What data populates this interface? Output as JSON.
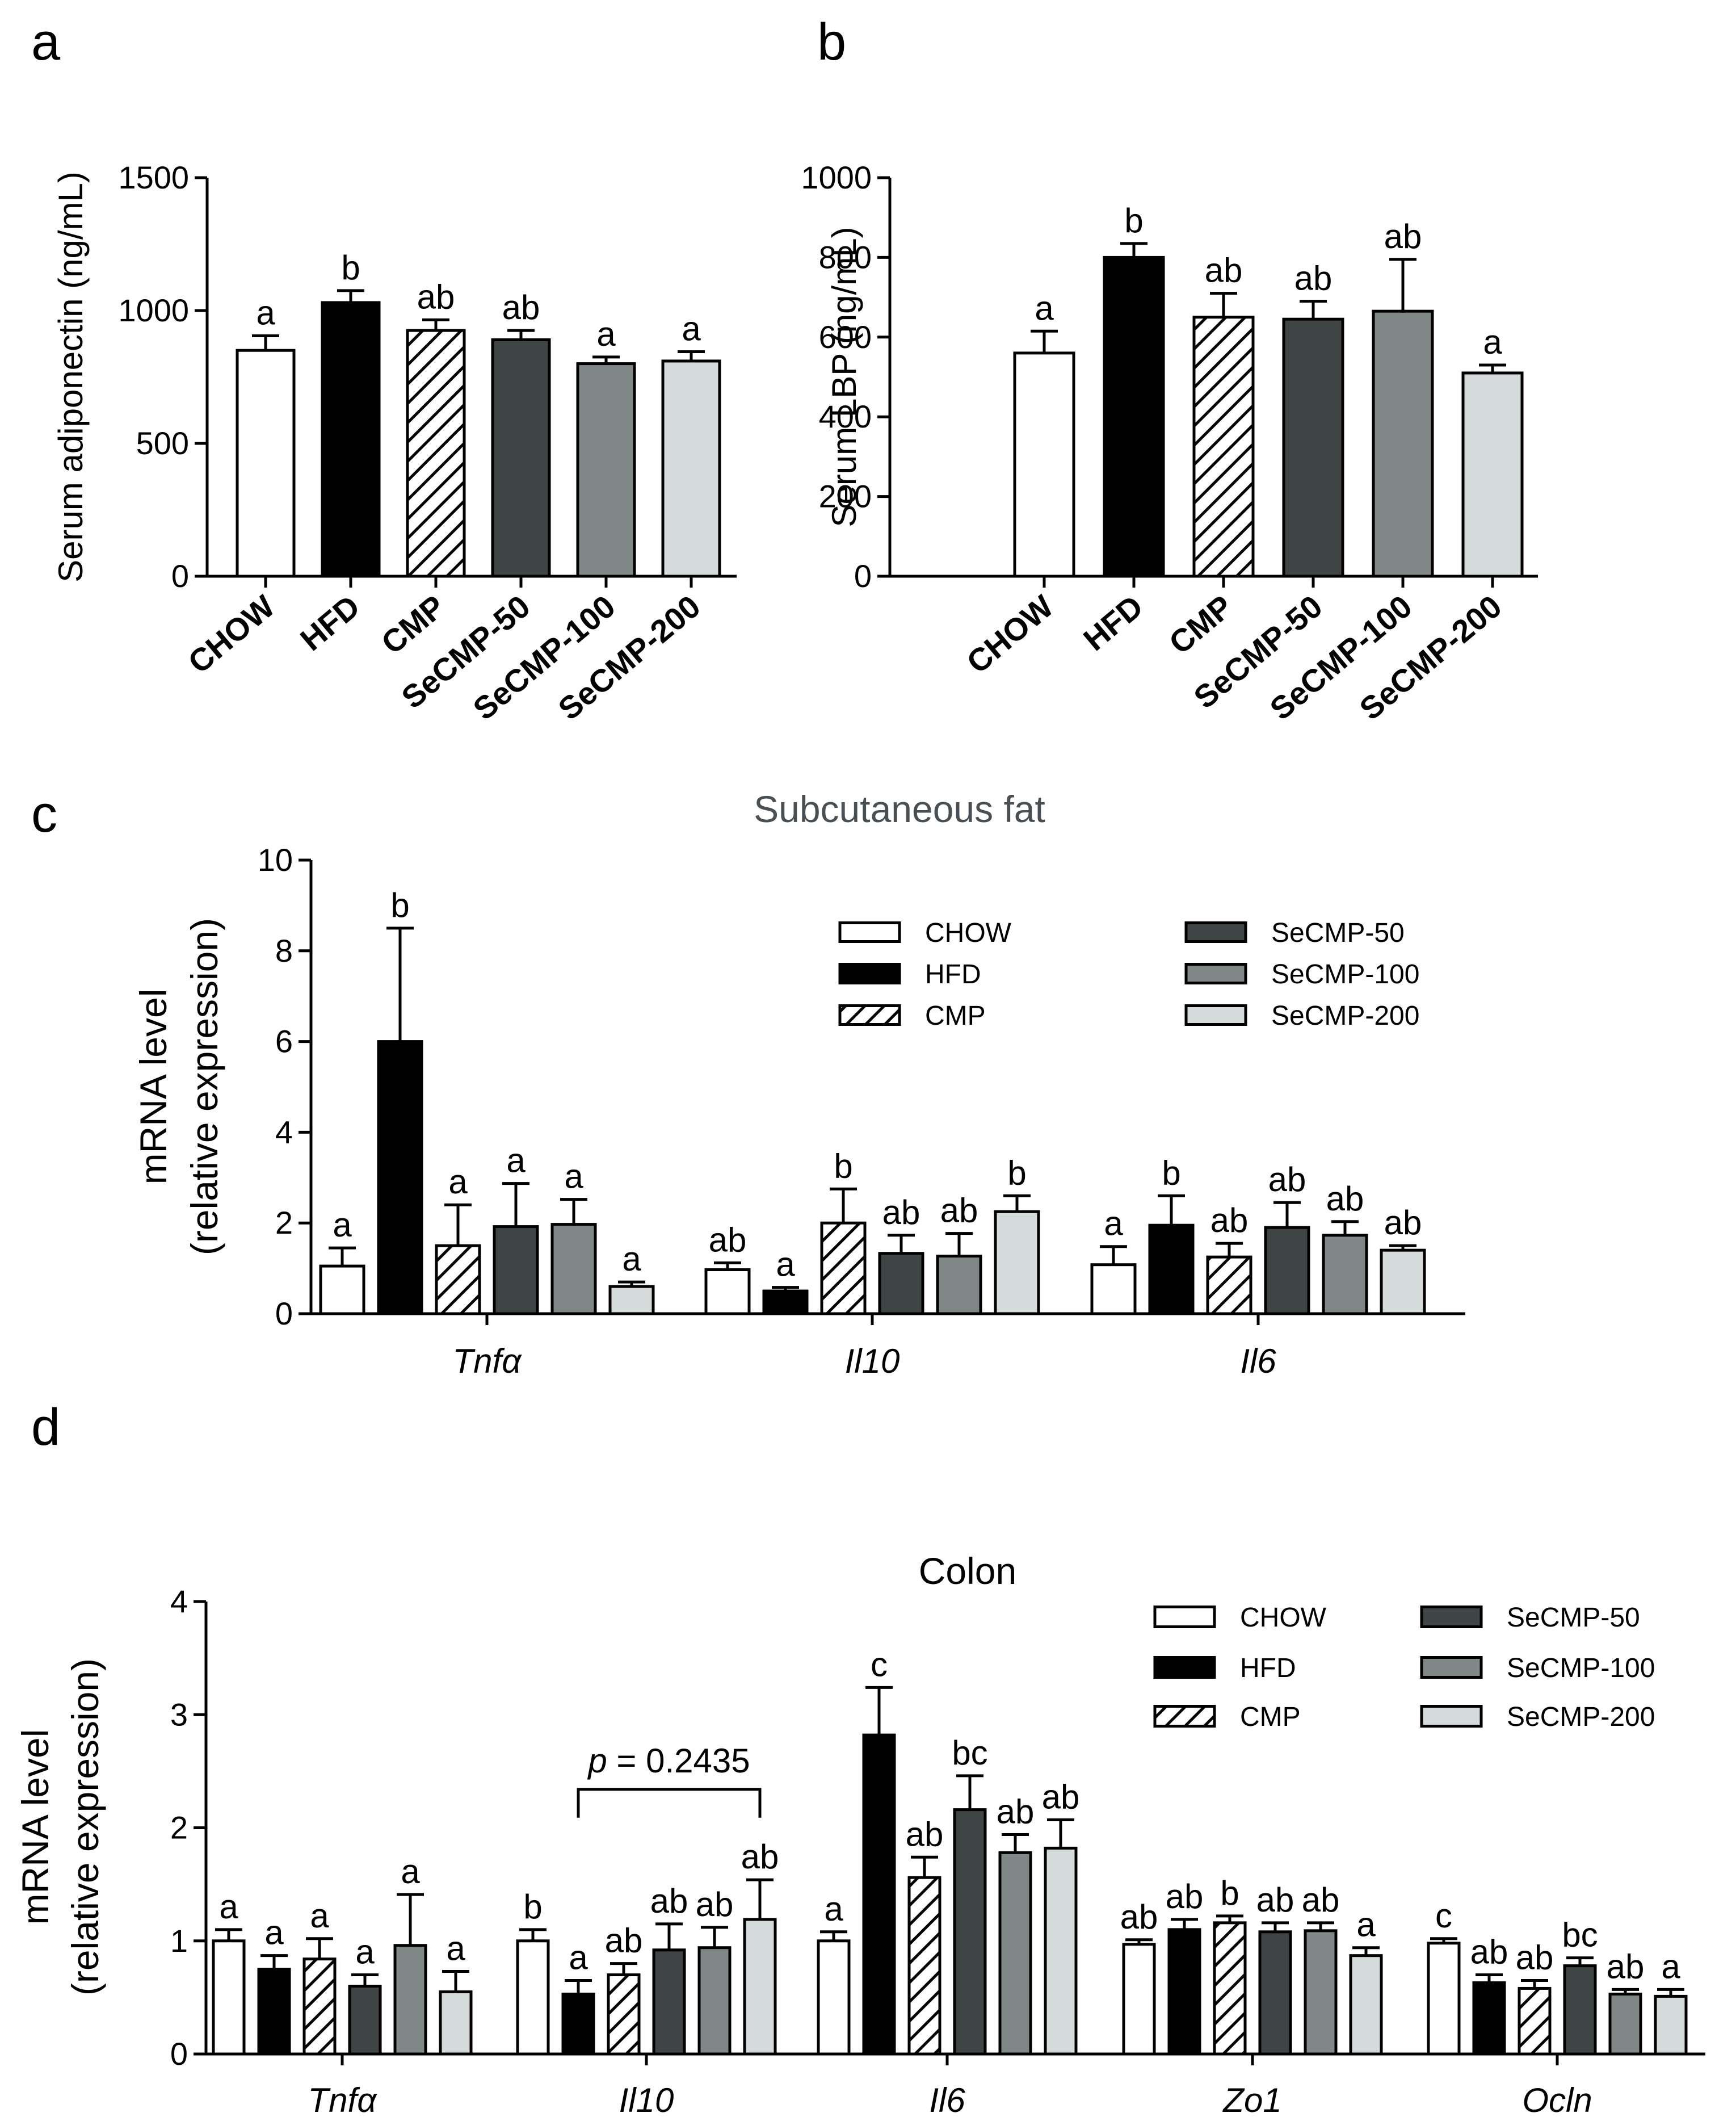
{
  "figure": {
    "groups": [
      "CHOW",
      "HFD",
      "CMP",
      "SeCMP-50",
      "SeCMP-100",
      "SeCMP-200"
    ],
    "group_colors": {
      "CHOW": "#ffffff",
      "HFD": "#000000",
      "CMP": "hatched",
      "SeCMP-50": "#3f4444",
      "SeCMP-100": "#7f8787",
      "SeCMP-200": "#d5dada"
    }
  },
  "chart_data": [
    {
      "id": "a",
      "panel_label": "a",
      "type": "bar",
      "title": "",
      "ylabel": "Serum adiponectin (ng/mL)",
      "ylim": [
        0,
        1500
      ],
      "yticks": [
        0,
        500,
        1000,
        1500
      ],
      "categories": [
        "CHOW",
        "HFD",
        "CMP",
        "SeCMP-50",
        "SeCMP-100",
        "SeCMP-200"
      ],
      "values": [
        850,
        1030,
        925,
        890,
        800,
        810
      ],
      "errors": [
        55,
        45,
        40,
        35,
        25,
        35
      ],
      "letters": [
        "a",
        "b",
        "ab",
        "ab",
        "a",
        "a"
      ]
    },
    {
      "id": "b",
      "panel_label": "b",
      "type": "bar",
      "title": "",
      "ylabel": "Serum LBP (ng/mL)",
      "ylim": [
        0,
        1000
      ],
      "yticks": [
        0,
        200,
        400,
        600,
        800,
        1000
      ],
      "categories": [
        "CHOW",
        "HFD",
        "CMP",
        "SeCMP-50",
        "SeCMP-100",
        "SeCMP-200"
      ],
      "values": [
        560,
        800,
        650,
        645,
        665,
        510
      ],
      "errors": [
        55,
        35,
        60,
        45,
        130,
        20
      ],
      "letters": [
        "a",
        "b",
        "ab",
        "ab",
        "ab",
        "a"
      ]
    },
    {
      "id": "c",
      "panel_label": "c",
      "type": "bar",
      "title": "Subcutaneous fat",
      "ylabel": [
        "mRNA level",
        "(relative expression)"
      ],
      "ylim": [
        0,
        10
      ],
      "yticks": [
        0,
        2,
        4,
        6,
        8,
        10
      ],
      "genes": [
        "Tnfα",
        "Il10",
        "Il6"
      ],
      "series": [
        {
          "name": "CHOW",
          "values": [
            1.05,
            0.97,
            1.08
          ],
          "errors": [
            0.4,
            0.15,
            0.4
          ],
          "letters": [
            "a",
            "ab",
            "a"
          ]
        },
        {
          "name": "HFD",
          "values": [
            6.0,
            0.5,
            1.95
          ],
          "errors": [
            2.5,
            0.08,
            0.65
          ],
          "letters": [
            "b",
            "a",
            "b"
          ]
        },
        {
          "name": "CMP",
          "values": [
            1.5,
            2.0,
            1.25
          ],
          "errors": [
            0.9,
            0.75,
            0.3
          ],
          "letters": [
            "a",
            "b",
            "ab"
          ]
        },
        {
          "name": "SeCMP-50",
          "values": [
            1.92,
            1.33,
            1.9
          ],
          "errors": [
            0.95,
            0.4,
            0.55
          ],
          "letters": [
            "a",
            "ab",
            "ab"
          ]
        },
        {
          "name": "SeCMP-100",
          "values": [
            1.97,
            1.27,
            1.73
          ],
          "errors": [
            0.55,
            0.5,
            0.3
          ],
          "letters": [
            "a",
            "ab",
            "ab"
          ]
        },
        {
          "name": "SeCMP-200",
          "values": [
            0.6,
            2.25,
            1.4
          ],
          "errors": [
            0.1,
            0.35,
            0.1
          ],
          "letters": [
            "a",
            "b",
            "ab"
          ]
        }
      ],
      "legend_position": "top-right"
    },
    {
      "id": "d",
      "panel_label": "d",
      "type": "bar",
      "title": "Colon",
      "ylabel": [
        "mRNA level",
        "(relative expression)"
      ],
      "ylim": [
        0,
        4
      ],
      "yticks": [
        0,
        1,
        2,
        3,
        4
      ],
      "genes": [
        "Tnfα",
        "Il10",
        "Il6",
        "Zo1",
        "Ocln"
      ],
      "series": [
        {
          "name": "CHOW",
          "values": [
            1.0,
            1.0,
            1.0,
            0.97,
            0.98
          ],
          "errors": [
            0.1,
            0.1,
            0.08,
            0.04,
            0.04
          ],
          "letters": [
            "a",
            "b",
            "a",
            "ab",
            "c"
          ]
        },
        {
          "name": "HFD",
          "values": [
            0.75,
            0.53,
            2.82,
            1.1,
            0.63
          ],
          "errors": [
            0.12,
            0.12,
            0.42,
            0.09,
            0.07
          ],
          "letters": [
            "a",
            "a",
            "c",
            "ab",
            "ab"
          ]
        },
        {
          "name": "CMP",
          "values": [
            0.84,
            0.7,
            1.56,
            1.16,
            0.58
          ],
          "errors": [
            0.18,
            0.1,
            0.18,
            0.06,
            0.07
          ],
          "letters": [
            "a",
            "ab",
            "ab",
            "b",
            "ab"
          ]
        },
        {
          "name": "SeCMP-50",
          "values": [
            0.6,
            0.92,
            2.16,
            1.08,
            0.78
          ],
          "errors": [
            0.1,
            0.23,
            0.3,
            0.08,
            0.07
          ],
          "letters": [
            "a",
            "ab",
            "bc",
            "ab",
            "bc"
          ]
        },
        {
          "name": "SeCMP-100",
          "values": [
            0.96,
            0.94,
            1.78,
            1.09,
            0.53
          ],
          "errors": [
            0.45,
            0.18,
            0.16,
            0.07,
            0.04
          ],
          "letters": [
            "a",
            "ab",
            "ab",
            "ab",
            "ab"
          ]
        },
        {
          "name": "SeCMP-200",
          "values": [
            0.55,
            1.19,
            1.82,
            0.87,
            0.51
          ],
          "errors": [
            0.18,
            0.35,
            0.25,
            0.07,
            0.06
          ],
          "letters": [
            "a",
            "ab",
            "ab",
            "a",
            "a"
          ]
        }
      ],
      "annotation": {
        "p_prefix": "p",
        "p_text": " = 0.2435",
        "gene": "Il10",
        "from_group": "HFD",
        "to_group": "SeCMP-200"
      },
      "legend_position": "top-right"
    }
  ]
}
